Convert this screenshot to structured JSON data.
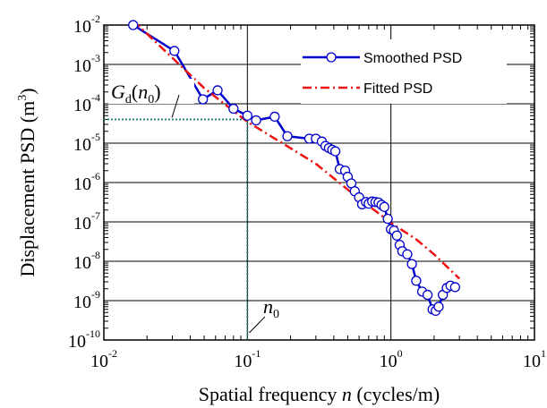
{
  "chart_data": {
    "type": "line",
    "xscale": "log",
    "yscale": "log",
    "xlim": [
      0.01,
      10
    ],
    "ylim": [
      1e-10,
      0.01
    ],
    "grid": true,
    "legend_position": "top-right",
    "xlabel": {
      "prefix": "Spatial frequency ",
      "var": "n",
      "suffix": " (cycles/m)"
    },
    "ylabel": {
      "text": "Displacement PSD (m",
      "sup": "3",
      "close": ")"
    },
    "x_ticks": [
      {
        "base": "10",
        "exp": "-2",
        "value": 0.01
      },
      {
        "base": "10",
        "exp": "-1",
        "value": 0.1
      },
      {
        "base": "10",
        "exp": "0",
        "value": 1
      },
      {
        "base": "10",
        "exp": "1",
        "value": 10
      }
    ],
    "y_ticks": [
      {
        "base": "10",
        "exp": "-2",
        "value": 0.01
      },
      {
        "base": "10",
        "exp": "-3",
        "value": 0.001
      },
      {
        "base": "10",
        "exp": "-4",
        "value": 0.0001
      },
      {
        "base": "10",
        "exp": "-5",
        "value": 1e-05
      },
      {
        "base": "10",
        "exp": "-6",
        "value": 1e-06
      },
      {
        "base": "10",
        "exp": "-7",
        "value": 1e-07
      },
      {
        "base": "10",
        "exp": "-8",
        "value": 1e-08
      },
      {
        "base": "10",
        "exp": "-9",
        "value": 1e-09
      },
      {
        "base": "10",
        "exp": "-10",
        "value": 1e-10
      }
    ],
    "series": [
      {
        "name": "Smoothed PSD",
        "color": "#0000cc",
        "style": "solid-with-circles",
        "x": [
          0.016,
          0.031,
          0.049,
          0.062,
          0.08,
          0.1,
          0.115,
          0.155,
          0.19,
          0.27,
          0.3,
          0.33,
          0.35,
          0.37,
          0.39,
          0.41,
          0.44,
          0.48,
          0.5,
          0.53,
          0.56,
          0.6,
          0.63,
          0.67,
          0.7,
          0.74,
          0.78,
          0.82,
          0.86,
          0.9,
          0.95,
          1.0,
          1.05,
          1.1,
          1.15,
          1.2,
          1.3,
          1.4,
          1.5,
          1.65,
          1.8,
          1.95,
          2.05,
          2.15,
          2.3,
          2.45,
          2.6,
          2.8
        ],
        "y": [
          0.01,
          0.0022,
          0.00013,
          0.00022,
          7.5e-05,
          5e-05,
          3.8e-05,
          4.7e-05,
          1.5e-05,
          1.3e-05,
          1.3e-05,
          1.1e-05,
          8.5e-06,
          7.5e-06,
          6.8e-06,
          6.2e-06,
          2.2e-06,
          2e-06,
          1.4e-06,
          9.5e-07,
          6e-07,
          4.2e-07,
          2.8e-07,
          3.2e-07,
          2.9e-07,
          3.3e-07,
          3.2e-07,
          3.1e-07,
          2.7e-07,
          2.4e-07,
          1.2e-07,
          6.5e-08,
          6e-08,
          4.5e-08,
          2.6e-08,
          1.8e-08,
          1.5e-08,
          8.5e-09,
          3.2e-09,
          1.7e-09,
          1.4e-09,
          6e-10,
          5.5e-10,
          7e-10,
          1.4e-09,
          2.1e-09,
          2.4e-09,
          2.2e-09
        ]
      },
      {
        "name": "Fitted PSD",
        "color": "#ee1111",
        "style": "dash-dot",
        "x": [
          0.016,
          0.05,
          0.1,
          0.3,
          0.55,
          1.0,
          1.5,
          2.0,
          3.0
        ],
        "y": [
          0.013,
          0.00025,
          3.5e-05,
          3e-06,
          5e-07,
          9.5e-08,
          3.6e-08,
          1.5e-08,
          3.6e-09
        ]
      }
    ],
    "reference": {
      "n0": 0.1,
      "g": 4e-05,
      "n0_label": {
        "var": "n",
        "sub": "0"
      },
      "g_label": {
        "var": "G",
        "sub": "d",
        "open": "(",
        "arg": "n",
        "argsub": "0",
        "close": ")"
      },
      "color": "#157a6e"
    }
  }
}
